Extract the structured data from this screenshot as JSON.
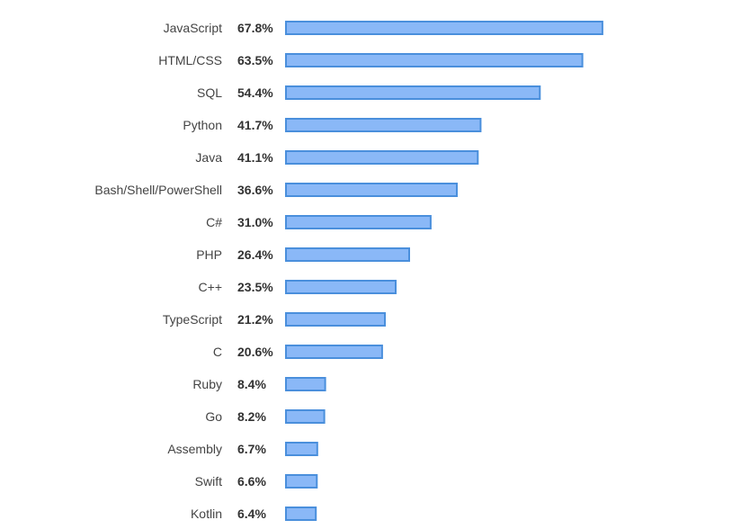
{
  "chart_data": {
    "type": "bar",
    "orientation": "horizontal",
    "categories": [
      "JavaScript",
      "HTML/CSS",
      "SQL",
      "Python",
      "Java",
      "Bash/Shell/PowerShell",
      "C#",
      "PHP",
      "C++",
      "TypeScript",
      "C",
      "Ruby",
      "Go",
      "Assembly",
      "Swift",
      "Kotlin"
    ],
    "values": [
      67.8,
      63.5,
      54.4,
      41.7,
      41.1,
      36.6,
      31.0,
      26.4,
      23.5,
      21.2,
      20.6,
      8.4,
      8.2,
      6.7,
      6.6,
      6.4
    ],
    "value_labels": [
      "67.8%",
      "63.5%",
      "54.4%",
      "41.7%",
      "41.1%",
      "36.6%",
      "31.0%",
      "26.4%",
      "23.5%",
      "21.2%",
      "20.6%",
      "8.4%",
      "8.2%",
      "6.7%",
      "6.6%",
      "6.4%"
    ],
    "unit": "%",
    "xlim": [
      0,
      100
    ],
    "grid": false,
    "legend": "none",
    "colors": {
      "bar_fill": "#8ab8f7",
      "bar_stroke": "#4a8fdc"
    }
  }
}
